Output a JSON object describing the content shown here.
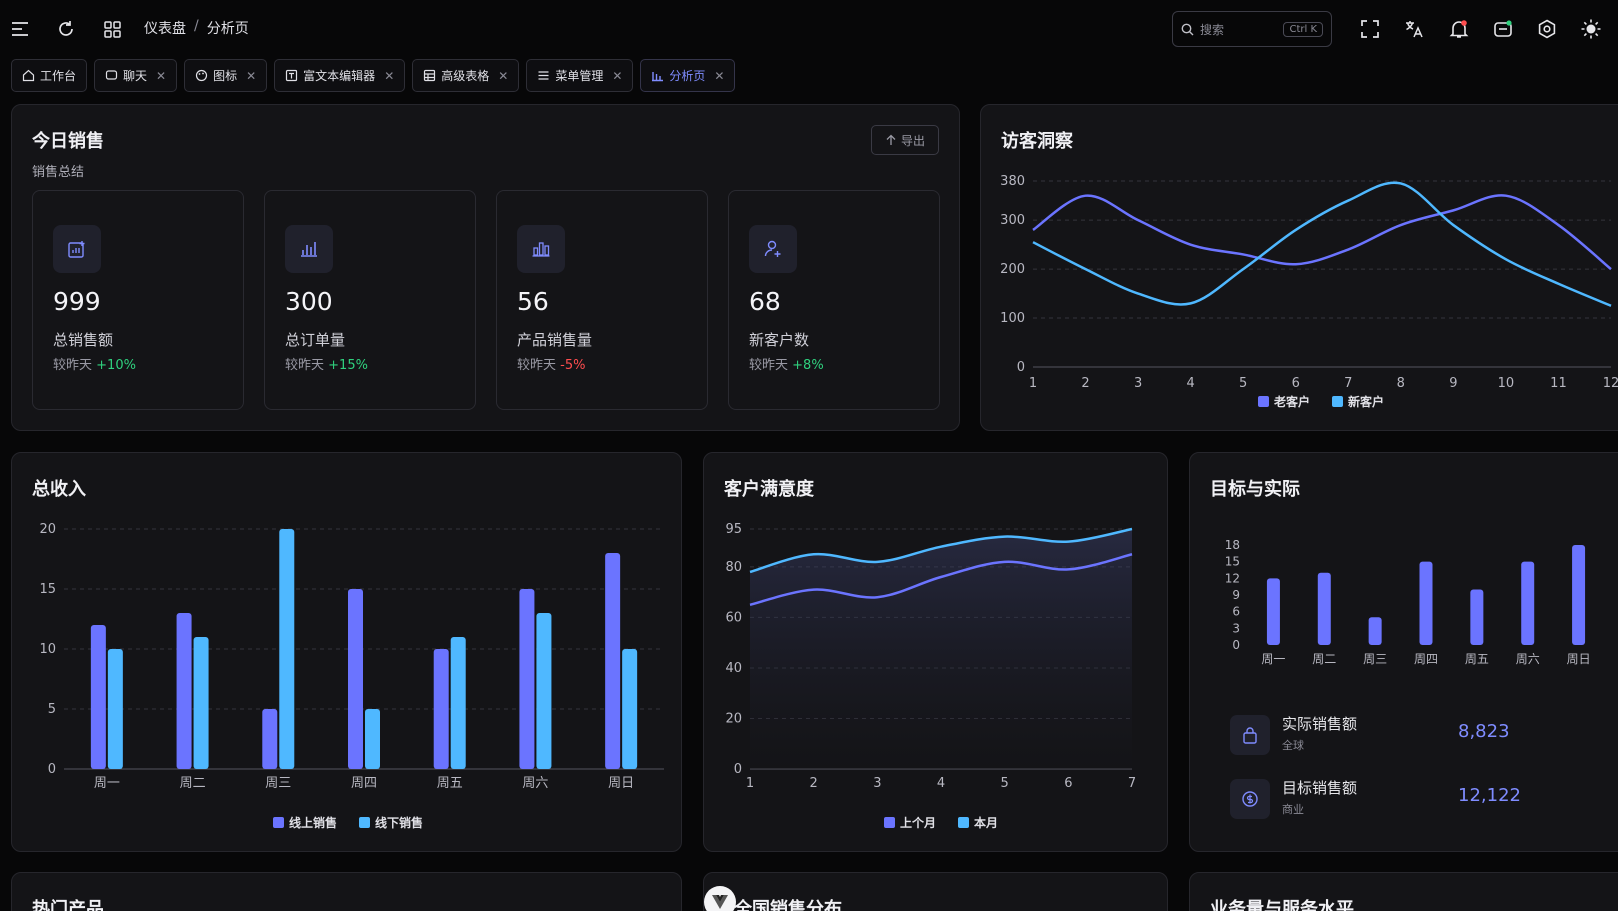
{
  "header": {
    "breadcrumbs": [
      "仪表盘",
      "分析页"
    ],
    "breadcrumb_sep": "/",
    "search_placeholder": "搜索",
    "search_shortcut": "Ctrl K"
  },
  "tabs": [
    {
      "label": "工作台",
      "closable": false
    },
    {
      "label": "聊天",
      "closable": true
    },
    {
      "label": "图标",
      "closable": true
    },
    {
      "label": "富文本编辑器",
      "closable": true
    },
    {
      "label": "高级表格",
      "closable": true
    },
    {
      "label": "菜单管理",
      "closable": true
    },
    {
      "label": "分析页",
      "closable": true,
      "active": true
    }
  ],
  "sales": {
    "title": "今日销售",
    "subtitle": "销售总结",
    "export_label": "导出",
    "compare_prefix": "较昨天",
    "stats": [
      {
        "value": "999",
        "label": "总销售额",
        "change": "+10%",
        "trend": "up",
        "icon": "sales-chart-icon"
      },
      {
        "value": "300",
        "label": "总订单量",
        "change": "+15%",
        "trend": "up",
        "icon": "bar-chart-icon"
      },
      {
        "value": "56",
        "label": "产品销售量",
        "change": "-5%",
        "trend": "down",
        "icon": "bar-chart-icon"
      },
      {
        "value": "68",
        "label": "新客户数",
        "change": "+8%",
        "trend": "up",
        "icon": "user-add-icon"
      }
    ]
  },
  "visitors": {
    "title": "访客洞察"
  },
  "revenue": {
    "title": "总收入"
  },
  "satisfaction": {
    "title": "客户满意度"
  },
  "target": {
    "title": "目标与实际",
    "rows": [
      {
        "label": "实际销售额",
        "sub": "全球",
        "value": "8,823",
        "icon": "bag-icon"
      },
      {
        "label": "目标销售额",
        "sub": "商业",
        "value": "12,122",
        "icon": "dollar-icon"
      }
    ]
  },
  "bottom": {
    "hot_products": "热门产品",
    "sales_distribution": "全国销售分布",
    "service_level": "业务量与服务水平"
  },
  "colors": {
    "primary": "#6b74ff",
    "secondary": "#4fb8ff",
    "up": "#2fd17e",
    "down": "#ff4d4f"
  },
  "chart_data": [
    {
      "id": "visitors",
      "type": "line",
      "x": [
        1,
        2,
        3,
        4,
        5,
        6,
        7,
        8,
        9,
        10,
        11,
        12
      ],
      "yticks": [
        0,
        100,
        200,
        300,
        380
      ],
      "ylim": [
        0,
        380
      ],
      "legend_position": "bottom",
      "series": [
        {
          "name": "老客户",
          "color": "#6b74ff",
          "values": [
            280,
            350,
            300,
            250,
            230,
            210,
            240,
            290,
            320,
            350,
            290,
            200
          ]
        },
        {
          "name": "新客户",
          "color": "#4fb8ff",
          "values": [
            255,
            200,
            150,
            130,
            200,
            280,
            340,
            375,
            290,
            220,
            170,
            125
          ]
        }
      ]
    },
    {
      "id": "revenue",
      "type": "bar",
      "categories": [
        "周一",
        "周二",
        "周三",
        "周四",
        "周五",
        "周六",
        "周日"
      ],
      "yticks": [
        0,
        5,
        10,
        15,
        20
      ],
      "ylim": [
        0,
        20
      ],
      "legend_position": "bottom",
      "series": [
        {
          "name": "线上销售",
          "color": "#6b74ff",
          "values": [
            12,
            13,
            5,
            15,
            10,
            15,
            18
          ]
        },
        {
          "name": "线下销售",
          "color": "#4fb8ff",
          "values": [
            10,
            11,
            20,
            5,
            11,
            13,
            10
          ]
        }
      ]
    },
    {
      "id": "satisfaction",
      "type": "area",
      "x": [
        1,
        2,
        3,
        4,
        5,
        6,
        7
      ],
      "yticks": [
        0,
        20,
        40,
        60,
        80,
        95
      ],
      "ylim": [
        0,
        95
      ],
      "legend_position": "bottom",
      "series": [
        {
          "name": "上个月",
          "color": "#6b74ff",
          "values": [
            65,
            71,
            68,
            76,
            82,
            79,
            85
          ]
        },
        {
          "name": "本月",
          "color": "#4fb8ff",
          "values": [
            78,
            85,
            82,
            88,
            92,
            90,
            95
          ]
        }
      ]
    },
    {
      "id": "target",
      "type": "bar",
      "categories": [
        "周一",
        "周二",
        "周三",
        "周四",
        "周五",
        "周六",
        "周日"
      ],
      "yticks": [
        0,
        3,
        6,
        9,
        12,
        15,
        18
      ],
      "ylim": [
        0,
        18
      ],
      "series": [
        {
          "name": "",
          "color": "#6b74ff",
          "values": [
            12,
            13,
            5,
            15,
            10,
            15,
            18
          ]
        }
      ]
    }
  ]
}
